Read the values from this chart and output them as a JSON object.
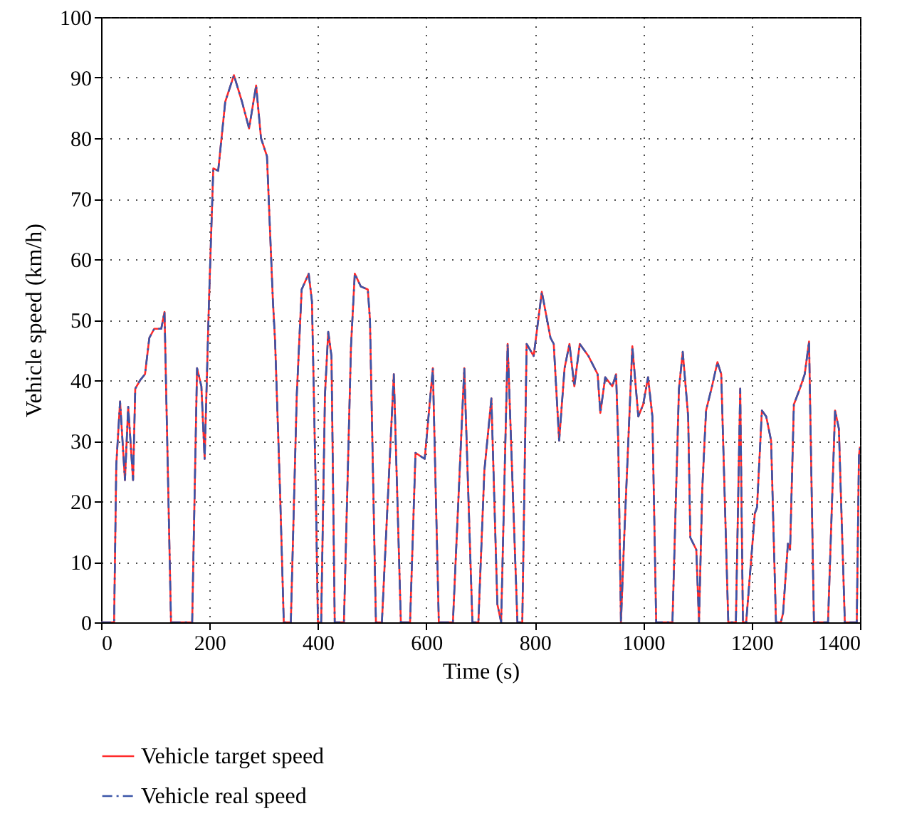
{
  "chart_data": {
    "type": "line",
    "xlabel": "Time (s)",
    "ylabel": "Vehicle speed (km/h)",
    "x": [
      0,
      24,
      28,
      35,
      44,
      50,
      59,
      63,
      72,
      81,
      89,
      98,
      111,
      117,
      129,
      168,
      177,
      185,
      191,
      199,
      207,
      216,
      229,
      245,
      260,
      273,
      286,
      295,
      306,
      317,
      321,
      330,
      337,
      350,
      361,
      370,
      383,
      389,
      396,
      400,
      406,
      413,
      419,
      425,
      431,
      448,
      461,
      468,
      479,
      492,
      496,
      507,
      518,
      540,
      553,
      570,
      580,
      597,
      606,
      612,
      623,
      649,
      670,
      685,
      696,
      707,
      720,
      731,
      738,
      750,
      768,
      777,
      785,
      798,
      813,
      829,
      835,
      845,
      855,
      864,
      873,
      883,
      899,
      916,
      921,
      930,
      943,
      950,
      954,
      959,
      965,
      980,
      991,
      1000,
      1009,
      1017,
      1024,
      1054,
      1066,
      1073,
      1083,
      1087,
      1098,
      1103,
      1109,
      1116,
      1127,
      1137,
      1144,
      1157,
      1171,
      1179,
      1184,
      1190,
      1206,
      1210,
      1219,
      1227,
      1236,
      1245,
      1254,
      1258,
      1267,
      1271,
      1278,
      1289,
      1298,
      1306,
      1315,
      1341,
      1354,
      1361,
      1372,
      1394,
      1398,
      1400
    ],
    "series": [
      {
        "name": "Vehicle target speed",
        "color": "#ff2a2a",
        "line_style": "solid",
        "values": [
          0,
          0,
          26,
          36.5,
          23.5,
          35.6,
          23.5,
          38.6,
          40,
          41,
          47,
          48.5,
          48.5,
          51.3,
          0,
          0,
          42,
          39,
          27,
          53,
          75,
          74.6,
          86,
          90.4,
          86,
          81.6,
          88.7,
          80,
          77,
          53,
          46.4,
          22,
          0,
          0,
          37.6,
          55,
          57.6,
          53,
          22,
          0,
          0,
          37.6,
          48,
          44,
          0,
          0,
          45.6,
          57.6,
          55.5,
          55,
          50,
          0,
          0,
          41,
          0,
          0,
          28,
          27,
          36,
          42,
          0,
          0,
          42,
          0,
          0,
          25,
          37,
          3,
          0,
          46,
          0,
          0,
          46,
          44,
          54.6,
          47,
          46,
          30,
          42,
          46,
          39,
          46,
          44,
          41,
          34.6,
          40.5,
          39,
          41,
          30,
          0,
          14,
          45.6,
          34,
          36,
          40.5,
          34,
          0,
          0,
          38.6,
          44.7,
          34,
          14,
          12,
          0,
          22,
          35,
          39,
          43,
          41,
          0,
          0,
          38.6,
          0,
          0,
          18,
          19,
          35,
          34,
          30,
          0,
          0,
          1.5,
          13,
          12,
          36,
          38.6,
          41,
          46.4,
          0,
          0,
          35,
          32,
          0,
          0,
          27.5,
          29
        ]
      },
      {
        "name": "Vehicle real speed",
        "color": "#3a55a8",
        "line_style": "dashed",
        "values": [
          0,
          0,
          26,
          36.5,
          23.5,
          35.6,
          23.5,
          38.6,
          40,
          41,
          47,
          48.5,
          48.5,
          51.3,
          0,
          0,
          42,
          39,
          27,
          53,
          75,
          74.6,
          86,
          90.4,
          86,
          81.6,
          88.7,
          80,
          77,
          53,
          46.4,
          22,
          0,
          0,
          37.6,
          55,
          57.6,
          53,
          22,
          0,
          0,
          37.6,
          48,
          44,
          0,
          0,
          45.6,
          57.6,
          55.5,
          55,
          50,
          0,
          0,
          41,
          0,
          0,
          28,
          27,
          36,
          42,
          0,
          0,
          42,
          0,
          0,
          25,
          37,
          3,
          0,
          46,
          0,
          0,
          46,
          44,
          54.6,
          47,
          46,
          30,
          42,
          46,
          39,
          46,
          44,
          41,
          34.6,
          40.5,
          39,
          41,
          30,
          0,
          14,
          45.6,
          34,
          36,
          40.5,
          34,
          0,
          0,
          38.6,
          44.7,
          34,
          14,
          12,
          0,
          22,
          35,
          39,
          43,
          41,
          0,
          0,
          38.6,
          0,
          0,
          18,
          19,
          35,
          34,
          30,
          0,
          0,
          1.5,
          13,
          12,
          36,
          38.6,
          41,
          46.4,
          0,
          0,
          35,
          32,
          0,
          0,
          27.5,
          29
        ]
      }
    ],
    "xlim": [
      0,
      1400
    ],
    "xticks": [
      0,
      200,
      400,
      600,
      800,
      1000,
      1200,
      1400
    ],
    "ylim": [
      0,
      100
    ],
    "yticks": [
      0,
      10,
      20,
      30,
      40,
      50,
      60,
      70,
      80,
      90,
      100
    ],
    "grid": true,
    "legend": "bottom left",
    "marker": "none"
  }
}
